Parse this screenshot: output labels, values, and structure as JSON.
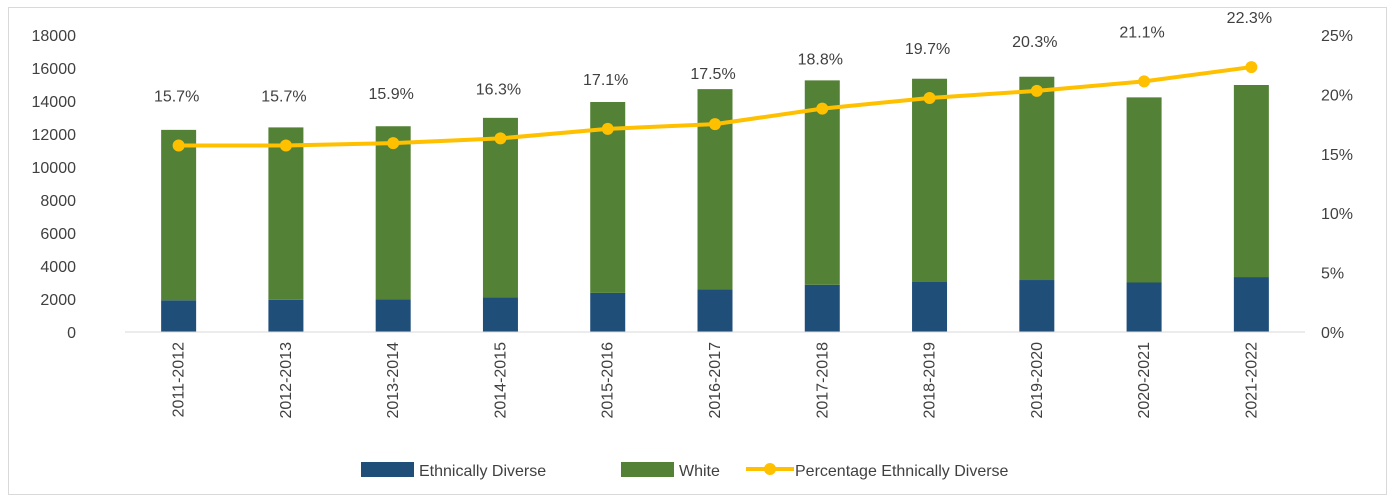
{
  "chart_data": {
    "type": "bar",
    "stacked": true,
    "categories": [
      "2011-2012",
      "2012-2013",
      "2013-2014",
      "2014-2015",
      "2015-2016",
      "2016-2017",
      "2017-2018",
      "2018-2019",
      "2019-2020",
      "2020-2021",
      "2021-2022"
    ],
    "series": [
      {
        "name": "Ethnically Diverse",
        "type": "bar",
        "axis": "left",
        "color": "#1f4e79",
        "values": [
          1920,
          1950,
          1990,
          2110,
          2370,
          2580,
          2860,
          3030,
          3150,
          3000,
          3330
        ]
      },
      {
        "name": "White",
        "type": "bar",
        "axis": "left",
        "color": "#538135",
        "values": [
          10330,
          10450,
          10480,
          10870,
          11570,
          12140,
          12390,
          12320,
          12320,
          11220,
          11640
        ]
      },
      {
        "name": "Percentage Ethnically Diverse",
        "type": "line",
        "axis": "right",
        "color": "#ffc000",
        "values": [
          15.7,
          15.7,
          15.9,
          16.3,
          17.1,
          17.5,
          18.8,
          19.7,
          20.3,
          21.1,
          22.3
        ],
        "data_labels": [
          "15.7%",
          "15.7%",
          "15.9%",
          "16.3%",
          "17.1%",
          "17.5%",
          "18.8%",
          "19.7%",
          "20.3%",
          "21.1%",
          "22.3%"
        ]
      }
    ],
    "y_left": {
      "min": 0,
      "max": 18000,
      "ticks": [
        "0",
        "2000",
        "4000",
        "6000",
        "8000",
        "10000",
        "12000",
        "14000",
        "16000",
        "18000"
      ]
    },
    "y_right": {
      "min": 0,
      "max": 25,
      "ticks": [
        "0%",
        "5%",
        "10%",
        "15%",
        "20%",
        "25%"
      ]
    },
    "title": "",
    "xlabel": "",
    "ylabel": "",
    "grid": false,
    "legend_position": "bottom"
  }
}
